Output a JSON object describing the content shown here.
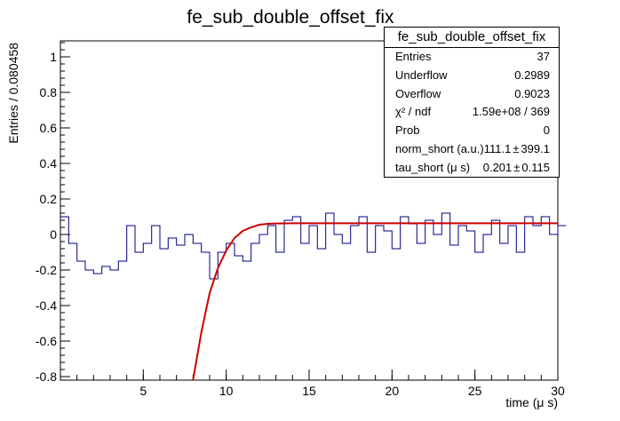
{
  "chart_data": {
    "type": "line",
    "title": "fe_sub_double_offset_fix",
    "xlabel": "time (μ s)",
    "ylabel": "Entries / 0.080458",
    "xlim": [
      0,
      30
    ],
    "ylim": [
      -0.82,
      1.09
    ],
    "x_ticks": [
      5,
      10,
      15,
      20,
      25,
      30
    ],
    "y_ticks": [
      -0.8,
      -0.6,
      -0.4,
      -0.2,
      0,
      0.2,
      0.4,
      0.6,
      0.8,
      1
    ],
    "grid": false,
    "series": [
      {
        "type": "histogram",
        "color": "#000080",
        "x": [
          0.0,
          0.5,
          1.0,
          1.5,
          2.0,
          2.5,
          3.0,
          3.5,
          4.0,
          4.5,
          5.0,
          5.5,
          6.0,
          6.5,
          7.0,
          7.5,
          8.0,
          8.5,
          9.0,
          9.5,
          10.0,
          10.5,
          11.0,
          11.5,
          12.0,
          12.5,
          13.0,
          13.5,
          14.0,
          14.5,
          15.0,
          15.5,
          16.0,
          16.5,
          17.0,
          17.5,
          18.0,
          18.5,
          19.0,
          19.5,
          20.0,
          20.5,
          21.0,
          21.5,
          22.0,
          22.5,
          23.0,
          23.5,
          24.0,
          24.5,
          25.0,
          25.5,
          26.0,
          26.5,
          27.0,
          27.5,
          28.0,
          28.5,
          29.0,
          29.5,
          30.0
        ],
        "y": [
          0.1,
          -0.05,
          -0.15,
          -0.2,
          -0.22,
          -0.18,
          -0.2,
          -0.15,
          0.05,
          -0.1,
          -0.05,
          0.05,
          -0.08,
          -0.02,
          -0.06,
          0.0,
          -0.05,
          -0.1,
          -0.25,
          -0.1,
          -0.05,
          -0.12,
          -0.15,
          -0.05,
          0.0,
          0.05,
          -0.1,
          0.08,
          0.1,
          -0.05,
          0.05,
          -0.08,
          0.12,
          0.0,
          -0.05,
          0.05,
          0.1,
          -0.1,
          0.05,
          0.02,
          -0.08,
          0.1,
          0.06,
          -0.05,
          0.08,
          0.0,
          0.12,
          -0.06,
          0.05,
          0.02,
          -0.1,
          0.0,
          0.08,
          -0.05,
          0.05,
          -0.1,
          0.1,
          0.05,
          0.1,
          0.0,
          0.05
        ]
      },
      {
        "type": "fit",
        "color": "#cc0000",
        "x": [
          8.0,
          8.5,
          9.0,
          9.5,
          10.0,
          10.5,
          11.0,
          11.5,
          12.0,
          12.5,
          13.0,
          14.0,
          15.0,
          20.0,
          25.0,
          30.0
        ],
        "y": [
          -0.82,
          -0.55,
          -0.33,
          -0.19,
          -0.09,
          -0.02,
          0.02,
          0.04,
          0.055,
          0.06,
          0.062,
          0.063,
          0.063,
          0.063,
          0.063,
          0.063
        ]
      }
    ]
  },
  "stats": {
    "title": "fe_sub_double_offset_fix",
    "rows": [
      {
        "label": "Entries",
        "value": "37"
      },
      {
        "label": "Underflow",
        "value": "0.2989"
      },
      {
        "label": "Overflow",
        "value": "0.9023"
      },
      {
        "label": "χ² / ndf",
        "value": "1.59e+08 / 369"
      },
      {
        "label": "Prob",
        "value": "0"
      },
      {
        "label": "norm_short (a.u.)",
        "value": "111.1",
        "pm": "±",
        "err": "399.1"
      },
      {
        "label": "tau_short (μ s)",
        "value": "0.201",
        "pm": "±",
        "err": "0.115"
      }
    ]
  }
}
